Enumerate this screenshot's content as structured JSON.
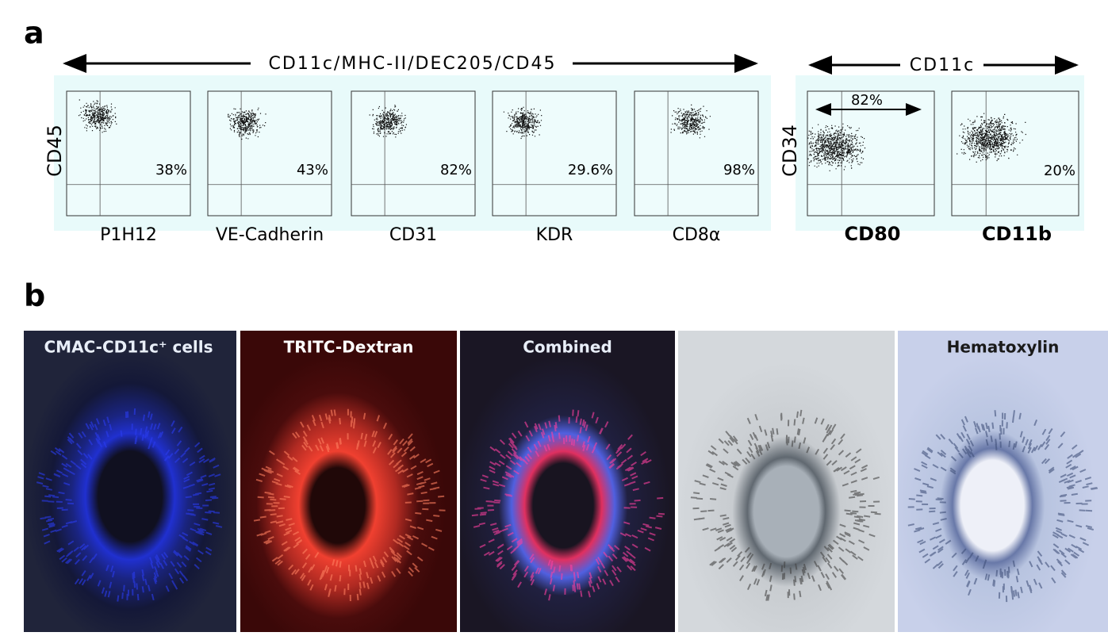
{
  "figure": {
    "panel_a": {
      "label": "a",
      "left_group": {
        "header": "CD11c/MHC-II/DEC205/CD45",
        "y_label": "CD45",
        "plots": [
          {
            "x_label": "P1H12",
            "percent": "38%"
          },
          {
            "x_label": "VE-Cadherin",
            "percent": "43%"
          },
          {
            "x_label": "CD31",
            "percent": "82%"
          },
          {
            "x_label": "KDR",
            "percent": "29.6%"
          },
          {
            "x_label": "CD8α",
            "percent": "98%"
          }
        ]
      },
      "right_group": {
        "header": "CD11c",
        "y_label": "CD34",
        "plots": [
          {
            "x_label": "CD80",
            "percent": "82%"
          },
          {
            "x_label": "CD11b",
            "percent": "20%"
          }
        ]
      }
    },
    "panel_b": {
      "label": "b",
      "images": [
        {
          "title": "CMAC-CD11c⁺ cells"
        },
        {
          "title": "TRITC-Dextran"
        },
        {
          "title": "Combined"
        },
        {
          "title": ""
        },
        {
          "title": "Hematoxylin"
        }
      ]
    }
  }
}
